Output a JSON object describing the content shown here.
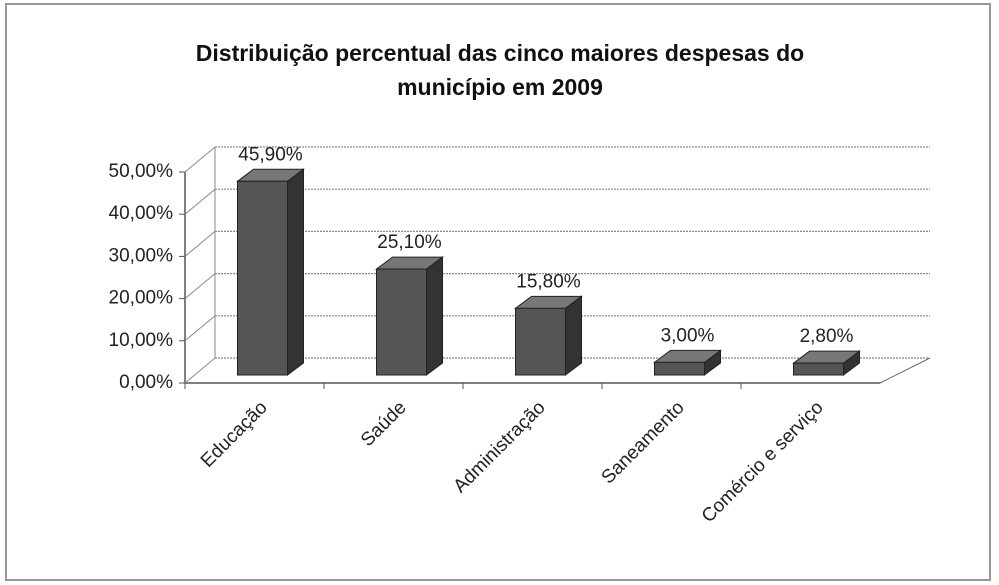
{
  "chart_data": {
    "type": "bar3d",
    "title": "Distribuição percentual das cinco maiores despesas do município em 2009",
    "categories": [
      "Educação",
      "Saúde",
      "Administração",
      "Saneamento",
      "Comércio e serviço"
    ],
    "values": [
      45.9,
      25.1,
      15.8,
      3.0,
      2.8
    ],
    "value_labels": [
      "45,90%",
      "25,10%",
      "15,80%",
      "3,00%",
      "2,80%"
    ],
    "color": "#555555",
    "ylim": [
      0,
      50
    ],
    "yticks": [
      {
        "value": 0,
        "label": "0,00%"
      },
      {
        "value": 10,
        "label": "10,00%"
      },
      {
        "value": 20,
        "label": "20,00%"
      },
      {
        "value": 30,
        "label": "30,00%"
      },
      {
        "value": 40,
        "label": "40,00%"
      },
      {
        "value": 50,
        "label": "50,00%"
      }
    ],
    "grid": true
  }
}
